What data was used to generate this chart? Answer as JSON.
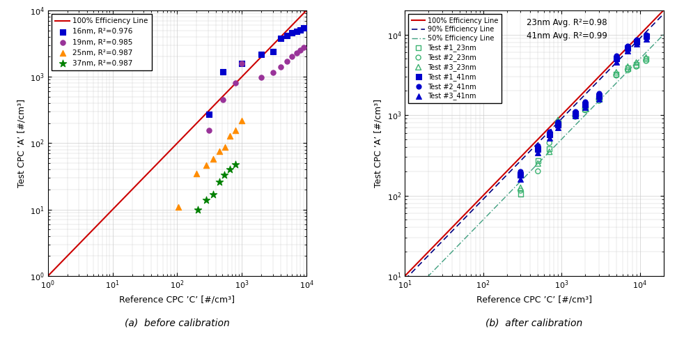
{
  "left_chart": {
    "xlabel": "Reference CPC ’C’ [#/cm³]",
    "ylabel": "Test CPC ’A’ [#/cm³]",
    "xlim": [
      1,
      10000
    ],
    "ylim": [
      1,
      10000
    ],
    "xticks": [
      1,
      10,
      100,
      1000,
      10000
    ],
    "yticks": [
      1,
      10,
      100,
      1000,
      10000
    ],
    "series_16nm": {
      "color": "#0000CC",
      "marker": "s",
      "label": "16nm, R²=0.976",
      "x": [
        310,
        510,
        1000,
        2000,
        3000,
        4000,
        5000,
        6000,
        7000,
        8000,
        9000
      ],
      "y": [
        270,
        1200,
        1600,
        2200,
        2400,
        3800,
        4200,
        4600,
        4800,
        5100,
        5500
      ]
    },
    "series_19nm": {
      "color": "#993399",
      "marker": "o",
      "label": "19nm, R²=0.985",
      "x": [
        310,
        510,
        800,
        1000,
        2000,
        3000,
        4000,
        5000,
        6000,
        7000,
        8000,
        9000
      ],
      "y": [
        155,
        450,
        800,
        1600,
        980,
        1150,
        1400,
        1700,
        2000,
        2300,
        2500,
        2800
      ]
    },
    "series_25nm": {
      "color": "#FF8C00",
      "marker": "^",
      "label": "25nm, R²=0.987",
      "x": [
        105,
        200,
        280,
        360,
        450,
        550,
        650,
        800,
        1000
      ],
      "y": [
        11,
        35,
        47,
        58,
        75,
        88,
        130,
        155,
        220
      ]
    },
    "series_37nm": {
      "color": "#008000",
      "marker": "*",
      "label": "37nm, R²=0.987",
      "x": [
        210,
        280,
        360,
        450,
        540,
        650,
        800
      ],
      "y": [
        10,
        14,
        17,
        26,
        33,
        40,
        48
      ]
    },
    "caption": "(a)  before calibration"
  },
  "right_chart": {
    "xlabel": "Reference CPC ’C’ [#/cm³]",
    "ylabel": "Test CPC ’A’ [#/cm³]",
    "xlim": [
      10,
      20000
    ],
    "ylim": [
      10,
      20000
    ],
    "xticks": [
      10,
      100,
      1000,
      10000
    ],
    "yticks": [
      10,
      100,
      1000,
      10000
    ],
    "annotation": "23nm Avg. R²=0.98\n41nm Avg. R²=0.99",
    "color_23nm": "#3CB371",
    "color_41nm": "#0000CC",
    "series_t1_23": {
      "marker": "s",
      "x": [
        300,
        500,
        700,
        900,
        1500,
        2000,
        3000,
        5000,
        7000,
        9000,
        12000
      ],
      "y": [
        105,
        270,
        380,
        800,
        1000,
        1200,
        1600,
        3200,
        3800,
        4200,
        5000
      ]
    },
    "series_t2_23": {
      "marker": "o",
      "x": [
        300,
        500,
        700,
        900,
        1500,
        2000,
        3000,
        5000,
        7000,
        9000,
        12000
      ],
      "y": [
        115,
        200,
        450,
        820,
        950,
        1150,
        1500,
        3100,
        3600,
        4000,
        4700
      ]
    },
    "series_t3_23": {
      "marker": "^",
      "x": [
        300,
        500,
        700,
        900,
        1500,
        2000,
        3000,
        5000,
        7000,
        9000,
        12000
      ],
      "y": [
        125,
        250,
        350,
        870,
        1050,
        1300,
        1700,
        3400,
        4000,
        4500,
        5200
      ]
    },
    "series_t1_41": {
      "marker": "s",
      "x": [
        300,
        500,
        700,
        900,
        1500,
        2000,
        3000,
        5000,
        7000,
        9000,
        12000
      ],
      "y": [
        180,
        380,
        570,
        760,
        1050,
        1350,
        1700,
        5000,
        6800,
        8200,
        9500
      ]
    },
    "series_t2_41": {
      "marker": "o",
      "x": [
        300,
        500,
        700,
        900,
        1500,
        2000,
        3000,
        5000,
        7000,
        9000,
        12000
      ],
      "y": [
        200,
        420,
        620,
        820,
        1100,
        1450,
        1850,
        5500,
        7200,
        8700,
        10000
      ]
    },
    "series_t3_41": {
      "marker": "^",
      "x": [
        300,
        500,
        700,
        900,
        1500,
        2000,
        3000,
        5000,
        7000,
        9000,
        12000
      ],
      "y": [
        160,
        340,
        520,
        700,
        980,
        1250,
        1580,
        4600,
        6300,
        7600,
        8800
      ]
    },
    "caption": "(b)  after calibration"
  },
  "line_color_100pct": "#CC0000",
  "line_color_90pct": "#000080",
  "line_color_50pct": "#40A080",
  "grid_color": "#CCCCCC",
  "background_color": "#FFFFFF"
}
